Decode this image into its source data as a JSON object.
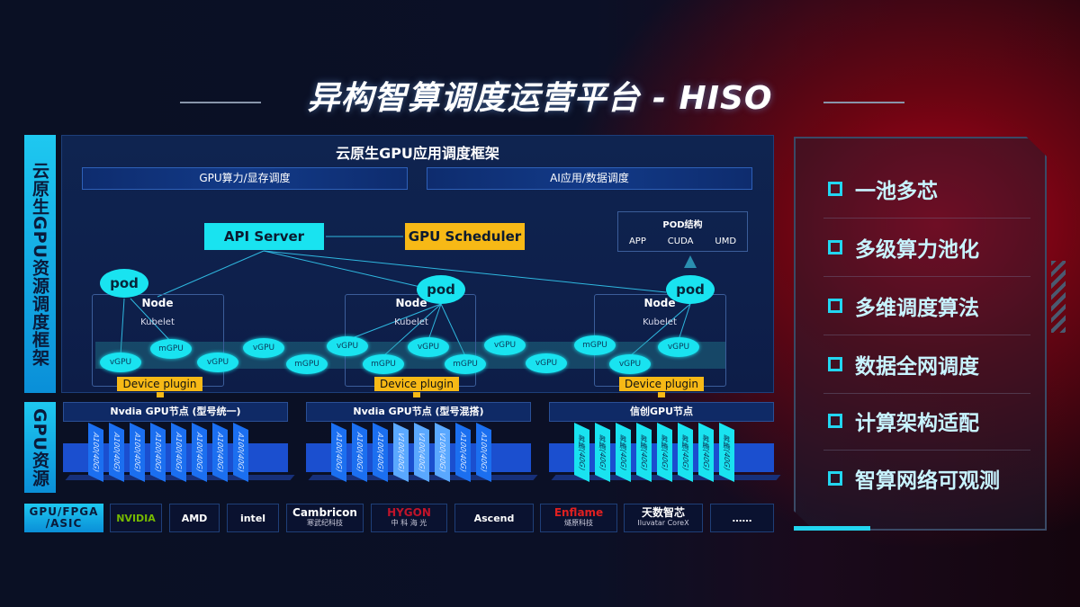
{
  "title": "异构智算调度运营平台 - HISO",
  "left_labels": {
    "framework": "云原生GPU资源调度框架",
    "resources": "GPU资源"
  },
  "framework": {
    "title": "云原生GPU应用调度框架",
    "sub_left": "GPU算力/显存调度",
    "sub_right": "AI应用/数据调度",
    "api_server": "API Server",
    "gpu_scheduler": "GPU Scheduler",
    "pod_structure": {
      "title": "POD结构",
      "items": [
        "APP",
        "CUDA",
        "UMD"
      ]
    },
    "pod_label": "pod",
    "node_label": "Node",
    "kubelet_label": "Kubelet",
    "device_plugin": "Device plugin",
    "gpus": [
      "vGPU",
      "mGPU",
      "vGPU",
      "vGPU",
      "mGPU",
      "vGPU",
      "mGPU",
      "vGPU",
      "mGPU",
      "vGPU",
      "vGPU",
      "mGPU",
      "vGPU",
      "vGPU"
    ]
  },
  "gpu_nodes": [
    {
      "title": "Nvdia GPU节点 (型号统一)",
      "cards": [
        "A100(40G)",
        "A100(40G)",
        "A100(40G)",
        "A100(40G)",
        "A100(40G)",
        "A100(40G)",
        "A100(40G)",
        "A100(40G)"
      ]
    },
    {
      "title": "Nvdia GPU节点 (型号混搭)",
      "cards": [
        "A100(40G)",
        "A100(40G)",
        "A100(40G)",
        "V100(40G)",
        "V100(40G)",
        "V100(40G)",
        "A100(40G)",
        "A100(40G)"
      ]
    },
    {
      "title": "信创GPU节点",
      "cards": [
        "昇腾(40G)",
        "昇腾(40G)",
        "昇腾(40G)",
        "昇腾(40G)",
        "昇腾(40G)",
        "昇腾(40G)",
        "昇腾(40G)",
        "昇腾(40G)"
      ]
    }
  ],
  "vendors": {
    "label": "GPU/FPGA /ASIC",
    "logos": [
      {
        "name": "NVIDIA",
        "sub": "",
        "color": "#76b900"
      },
      {
        "name": "AMD",
        "sub": "",
        "color": "#ffffff"
      },
      {
        "name": "intel",
        "sub": "",
        "color": "#ffffff"
      },
      {
        "name": "Cambricon",
        "sub": "寒武纪科技",
        "color": "#ffffff"
      },
      {
        "name": "HYGON",
        "sub": "中 科 海 光",
        "color": "#c0142a"
      },
      {
        "name": "Ascend",
        "sub": "",
        "color": "#ffffff"
      },
      {
        "name": "Enflame",
        "sub": "燧原科技",
        "color": "#e02020"
      },
      {
        "name": "天数智芯",
        "sub": "Iluvatar CoreX",
        "color": "#ffffff"
      },
      {
        "name": "……",
        "sub": "",
        "color": "#ffffff"
      }
    ]
  },
  "features": [
    "一池多芯",
    "多级算力池化",
    "多维调度算法",
    "数据全网调度",
    "计算架构适配",
    "智算网络可观测"
  ],
  "colors": {
    "cyan": "#19e3f0",
    "orange": "#f7b916",
    "blue": "#1b4fcf",
    "red": "#b0001a"
  }
}
